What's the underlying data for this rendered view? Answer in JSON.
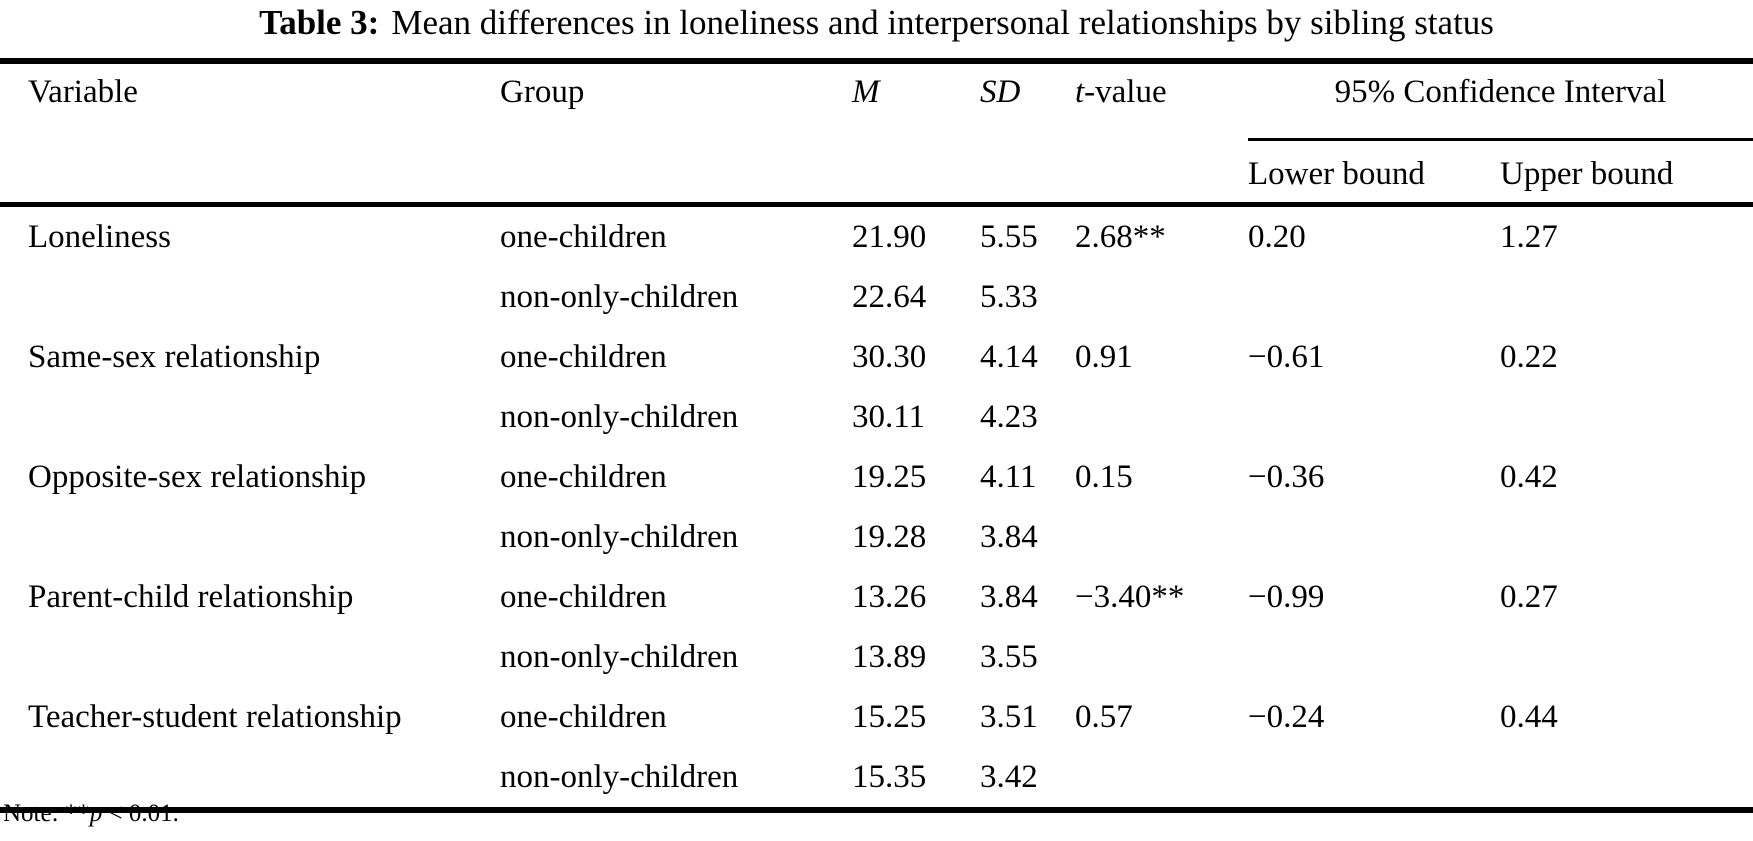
{
  "title": {
    "label": "Table 3:",
    "text": "Mean differences in loneliness and interpersonal relationships by sibling status"
  },
  "table": {
    "columns": {
      "variable": "Variable",
      "group": "Group",
      "m": "M",
      "sd": "SD",
      "t_italic": "t",
      "t_rest": "-value",
      "ci": "95% Confidence Interval",
      "lower": "Lower bound",
      "upper": "Upper bound"
    },
    "rows": [
      {
        "variable": "Loneliness",
        "group": "one-children",
        "m": "21.90",
        "sd": "5.55",
        "t": "2.68**",
        "lower": "0.20",
        "upper": "1.27"
      },
      {
        "variable": "",
        "group": "non-only-children",
        "m": "22.64",
        "sd": "5.33",
        "t": "",
        "lower": "",
        "upper": ""
      },
      {
        "variable": "Same-sex relationship",
        "group": "one-children",
        "m": "30.30",
        "sd": "4.14",
        "t": "0.91",
        "lower": "−0.61",
        "upper": "0.22"
      },
      {
        "variable": "",
        "group": "non-only-children",
        "m": "30.11",
        "sd": "4.23",
        "t": "",
        "lower": "",
        "upper": ""
      },
      {
        "variable": "Opposite-sex relationship",
        "group": "one-children",
        "m": "19.25",
        "sd": "4.11",
        "t": "0.15",
        "lower": "−0.36",
        "upper": "0.42"
      },
      {
        "variable": "",
        "group": "non-only-children",
        "m": "19.28",
        "sd": "3.84",
        "t": "",
        "lower": "",
        "upper": ""
      },
      {
        "variable": "Parent-child relationship",
        "group": "one-children",
        "m": "13.26",
        "sd": "3.84",
        "t": "−3.40**",
        "lower": "−0.99",
        "upper": "0.27"
      },
      {
        "variable": "",
        "group": "non-only-children",
        "m": "13.89",
        "sd": "3.55",
        "t": "",
        "lower": "",
        "upper": ""
      },
      {
        "variable": "Teacher-student relationship",
        "group": "one-children",
        "m": "15.25",
        "sd": "3.51",
        "t": "0.57",
        "lower": "−0.24",
        "upper": "0.44"
      },
      {
        "variable": "",
        "group": "non-only-children",
        "m": "15.35",
        "sd": "3.42",
        "t": "",
        "lower": "",
        "upper": ""
      }
    ]
  },
  "note": {
    "prefix": "Note: **",
    "p": "p",
    "suffix": " < 0.01."
  },
  "colors": {
    "text": "#000000",
    "background": "#ffffff",
    "rule": "#000000"
  }
}
